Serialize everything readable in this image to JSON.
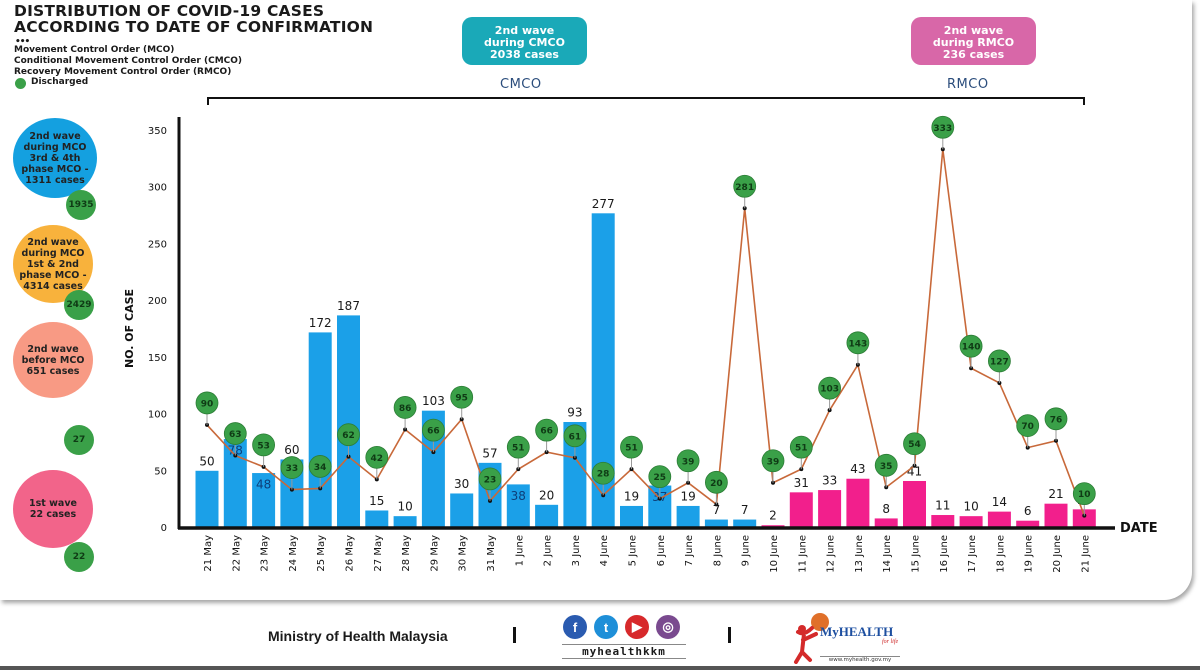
{
  "header": {
    "title_line1": "DISTRIBUTION OF COVID-19 CASES",
    "title_line2": "ACCORDING TO DATE OF CONFIRMATION",
    "dots": "•••",
    "legend": [
      "Movement Control Order (MCO)",
      "Conditional Movement Control Order (CMCO)",
      "Recovery Movement Control Order (RMCO)"
    ],
    "discharged_label": "Discharged"
  },
  "top_boxes": [
    {
      "lines": [
        "2nd wave",
        "during CMCO",
        "2038 cases"
      ],
      "color": "#1aa9b8"
    },
    {
      "lines": [
        "2nd wave",
        "during RMCO",
        "236 cases"
      ],
      "color": "#d867a8"
    }
  ],
  "phases": {
    "cmco": "CMCO",
    "rmco": "RMCO"
  },
  "waves": [
    {
      "lines": [
        "2nd wave",
        "during MCO",
        "3rd & 4th",
        "phase MCO -",
        "1311 cases"
      ],
      "color": "#14a0e0",
      "discharged": "1935"
    },
    {
      "lines": [
        "2nd wave",
        "during MCO",
        "1st & 2nd",
        "phase MCO -",
        "4314 cases"
      ],
      "color": "#f8b23c",
      "discharged": "2429"
    },
    {
      "lines": [
        "2nd wave",
        "before MCO",
        "651 cases"
      ],
      "color": "#f89a84",
      "discharged": "27"
    },
    {
      "lines": [
        "1st wave",
        "22 cases"
      ],
      "color": "#f2648a",
      "discharged": "22"
    }
  ],
  "colors": {
    "cmco_bar": "#1ba0e8",
    "rmco_bar": "#f21f8c",
    "discharge_line": "#c8693a",
    "discharge_badge": "#3aa048",
    "axis": "#111111"
  },
  "chart_data": {
    "type": "bar",
    "title": "DISTRIBUTION OF COVID-19 CASES ACCORDING TO DATE OF CONFIRMATION",
    "xlabel": "DATE",
    "ylabel": "NO. OF CASE",
    "ylim": [
      0,
      350
    ],
    "yticks": [
      0,
      50,
      100,
      150,
      200,
      250,
      300,
      350
    ],
    "grid": false,
    "categories": [
      "21 May",
      "22 May",
      "23 May",
      "24 May",
      "25 May",
      "26 May",
      "27 May",
      "28 May",
      "29 May",
      "30 May",
      "31 May",
      "1 June",
      "2 June",
      "3 June",
      "4 June",
      "5 June",
      "6 June",
      "7 June",
      "8 June",
      "9 June",
      "10 June",
      "11 June",
      "12 June",
      "13 June",
      "14 June",
      "15 June",
      "16 June",
      "17 June",
      "18 June",
      "19 June",
      "20 June",
      "21 June"
    ],
    "series": [
      {
        "name": "Cases",
        "type": "bar",
        "values": [
          50,
          78,
          48,
          60,
          172,
          187,
          15,
          10,
          103,
          30,
          57,
          38,
          20,
          93,
          277,
          19,
          37,
          19,
          7,
          7,
          2,
          31,
          33,
          43,
          8,
          41,
          11,
          10,
          14,
          6,
          21,
          16
        ],
        "phase": [
          "CMCO",
          "CMCO",
          "CMCO",
          "CMCO",
          "CMCO",
          "CMCO",
          "CMCO",
          "CMCO",
          "CMCO",
          "CMCO",
          "CMCO",
          "CMCO",
          "CMCO",
          "CMCO",
          "CMCO",
          "CMCO",
          "CMCO",
          "CMCO",
          "CMCO",
          "CMCO",
          "RMCO",
          "RMCO",
          "RMCO",
          "RMCO",
          "RMCO",
          "RMCO",
          "RMCO",
          "RMCO",
          "RMCO",
          "RMCO",
          "RMCO",
          "RMCO"
        ],
        "label_inside": [
          false,
          true,
          true,
          false,
          false,
          false,
          false,
          false,
          false,
          false,
          false,
          true,
          false,
          false,
          false,
          false,
          true,
          false,
          false,
          false,
          false,
          false,
          false,
          false,
          false,
          false,
          false,
          false,
          false,
          false,
          false,
          false
        ]
      },
      {
        "name": "Discharged",
        "type": "line",
        "values": [
          90,
          63,
          53,
          33,
          34,
          62,
          42,
          86,
          66,
          95,
          23,
          51,
          66,
          61,
          28,
          51,
          25,
          39,
          20,
          281,
          39,
          51,
          103,
          143,
          35,
          54,
          333,
          140,
          127,
          70,
          76,
          10
        ]
      }
    ]
  },
  "footer": {
    "ministry": "Ministry of Health Malaysia",
    "handle": "myhealthkkm",
    "social": [
      {
        "icon": "facebook-icon",
        "glyph": "f",
        "color": "#2a5bb0"
      },
      {
        "icon": "twitter-icon",
        "glyph": "t",
        "color": "#1e8fd8"
      },
      {
        "icon": "youtube-icon",
        "glyph": "▶",
        "color": "#d7292b"
      },
      {
        "icon": "instagram-icon",
        "glyph": "◎",
        "color": "#7a4a8f"
      }
    ],
    "brand": "MyHEALTH",
    "brand_tagline": "for life",
    "brand_url": "www.myhealth.gov.my"
  }
}
